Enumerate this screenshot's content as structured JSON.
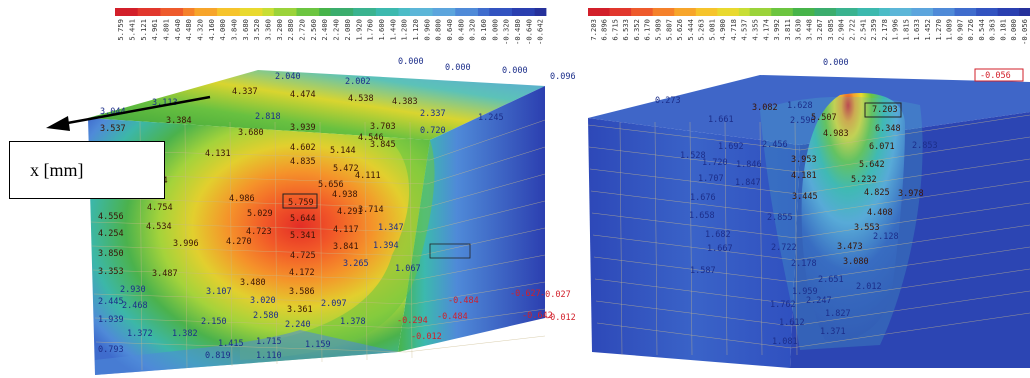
{
  "axis_callout": {
    "text": "x [mm]"
  },
  "left_scale": [
    "5.759",
    "5.441",
    "5.121",
    "4.961",
    "4.801",
    "4.640",
    "4.480",
    "4.320",
    "4.160",
    "4.000",
    "3.840",
    "3.680",
    "3.520",
    "3.360",
    "3.200",
    "2.880",
    "2.720",
    "2.560",
    "2.400",
    "2.240",
    "2.080",
    "1.920",
    "1.760",
    "1.600",
    "1.440",
    "1.280",
    "1.120",
    "0.960",
    "0.800",
    "0.640",
    "0.480",
    "0.320",
    "0.160",
    "0.000",
    "-0.320",
    "-0.480",
    "-0.640",
    "-0.642"
  ],
  "right_scale": [
    "7.203",
    "6.896",
    "6.715",
    "6.533",
    "6.352",
    "6.170",
    "5.989",
    "5.807",
    "5.626",
    "5.444",
    "5.263",
    "5.081",
    "4.900",
    "4.718",
    "4.537",
    "4.355",
    "4.174",
    "3.992",
    "3.811",
    "3.630",
    "3.448",
    "3.267",
    "3.085",
    "2.904",
    "2.722",
    "2.541",
    "2.359",
    "2.178",
    "1.996",
    "1.815",
    "1.633",
    "1.452",
    "1.270",
    "1.089",
    "0.907",
    "0.726",
    "0.544",
    "0.363",
    "0.181",
    "0.000",
    "-0.056"
  ],
  "scale_colors": [
    "#d21f2a",
    "#e1372d",
    "#ee5a2c",
    "#f5812b",
    "#f7a52b",
    "#f6c42c",
    "#e9d92f",
    "#c8de35",
    "#9bd33a",
    "#6cc540",
    "#47b44a",
    "#3bad6d",
    "#3ab38f",
    "#3cb9ae",
    "#4bbcc7",
    "#5cb6d8",
    "#5ca5dd",
    "#4f8ad8",
    "#3f6ccd",
    "#3253c0",
    "#2a3fb0",
    "#26319b"
  ],
  "left_labels": [
    {
      "t": "2.040"
    },
    {
      "t": "2.002"
    },
    {
      "t": "0.000"
    },
    {
      "t": "0.000"
    },
    {
      "t": "0.000"
    },
    {
      "t": "0.096"
    },
    {
      "t": "4.337"
    },
    {
      "t": "4.474"
    },
    {
      "t": "4.538"
    },
    {
      "t": "4.383"
    },
    {
      "t": "2.337"
    },
    {
      "t": "1.245"
    },
    {
      "t": "3.044"
    },
    {
      "t": "3.113"
    },
    {
      "t": "3.384"
    },
    {
      "t": "2.818"
    },
    {
      "t": "3.537"
    },
    {
      "t": "3.680"
    },
    {
      "t": "3.939"
    },
    {
      "t": "3.703"
    },
    {
      "t": "0.720"
    },
    {
      "t": "4.546"
    },
    {
      "t": "4.602"
    },
    {
      "t": "3.845"
    },
    {
      "t": "4.131"
    },
    {
      "t": "4.835"
    },
    {
      "t": "5.144"
    },
    {
      "t": "4.414"
    },
    {
      "t": "5.472"
    },
    {
      "t": "4.694"
    },
    {
      "t": "5.656"
    },
    {
      "t": "4.111"
    },
    {
      "t": "4.986"
    },
    {
      "t": "4.938"
    },
    {
      "t": "5.759"
    },
    {
      "t": "4.754"
    },
    {
      "t": "5.029"
    },
    {
      "t": "5.644"
    },
    {
      "t": "4.291"
    },
    {
      "t": "3.714"
    },
    {
      "t": "4.556"
    },
    {
      "t": "4.534"
    },
    {
      "t": "4.723"
    },
    {
      "t": "5.341"
    },
    {
      "t": "4.117"
    },
    {
      "t": "1.347"
    },
    {
      "t": "4.254"
    },
    {
      "t": "3.841"
    },
    {
      "t": "1.394"
    },
    {
      "t": "3.996"
    },
    {
      "t": "4.270"
    },
    {
      "t": "4.725"
    },
    {
      "t": "3.850"
    },
    {
      "t": "3.265"
    },
    {
      "t": "1.067"
    },
    {
      "t": "4.172"
    },
    {
      "t": "3.353"
    },
    {
      "t": "3.487"
    },
    {
      "t": "3.480"
    },
    {
      "t": "3.586"
    },
    {
      "t": "3.107"
    },
    {
      "t": "2.930"
    },
    {
      "t": "3.020"
    },
    {
      "t": "2.097"
    },
    {
      "t": "2.445"
    },
    {
      "t": "2.468"
    },
    {
      "t": "3.361"
    },
    {
      "t": "2.150"
    },
    {
      "t": "2.580"
    },
    {
      "t": "1.378"
    },
    {
      "t": "1.939"
    },
    {
      "t": "2.240"
    },
    {
      "t": "1.372"
    },
    {
      "t": "1.382"
    },
    {
      "t": "1.415"
    },
    {
      "t": "1.715"
    },
    {
      "t": "1.159"
    },
    {
      "t": "0.793"
    },
    {
      "t": "0.819"
    },
    {
      "t": "1.110"
    },
    {
      "t": "-0.484"
    },
    {
      "t": "-0.627"
    },
    {
      "t": "-0.642"
    },
    {
      "t": "-0.484"
    },
    {
      "t": "-0.027"
    },
    {
      "t": "-0.012"
    },
    {
      "t": "-0.294"
    },
    {
      "t": "-0.012"
    }
  ],
  "right_labels": [
    {
      "t": "0.000"
    },
    {
      "t": "-0.056"
    },
    {
      "t": "7.203"
    },
    {
      "t": "6.348"
    },
    {
      "t": "0.273"
    },
    {
      "t": "3.082"
    },
    {
      "t": "1.628"
    },
    {
      "t": "1.661"
    },
    {
      "t": "2.596"
    },
    {
      "t": "5.507"
    },
    {
      "t": "4.983"
    },
    {
      "t": "6.071"
    },
    {
      "t": "1.692"
    },
    {
      "t": "2.456"
    },
    {
      "t": "1.528"
    },
    {
      "t": "1.720"
    },
    {
      "t": "1.846"
    },
    {
      "t": "3.953"
    },
    {
      "t": "5.642"
    },
    {
      "t": "2.853"
    },
    {
      "t": "4.181"
    },
    {
      "t": "5.232"
    },
    {
      "t": "1.707"
    },
    {
      "t": "1.847"
    },
    {
      "t": "4.825"
    },
    {
      "t": "3.978"
    },
    {
      "t": "1.676"
    },
    {
      "t": "3.445"
    },
    {
      "t": "1.658"
    },
    {
      "t": "2.855"
    },
    {
      "t": "4.408"
    },
    {
      "t": "1.682"
    },
    {
      "t": "3.553"
    },
    {
      "t": "2.128"
    },
    {
      "t": "1.667"
    },
    {
      "t": "2.722"
    },
    {
      "t": "3.473"
    },
    {
      "t": "2.178"
    },
    {
      "t": "3.080"
    },
    {
      "t": "1.587"
    },
    {
      "t": "2.651"
    },
    {
      "t": "1.959"
    },
    {
      "t": "2.012"
    },
    {
      "t": "1.762"
    },
    {
      "t": "2.247"
    },
    {
      "t": "1.827"
    },
    {
      "t": "1.612"
    },
    {
      "t": "1.371"
    },
    {
      "t": "1.081"
    }
  ]
}
